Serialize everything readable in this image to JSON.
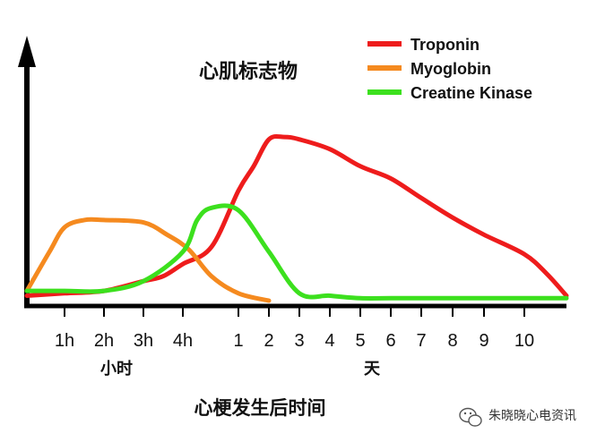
{
  "chart_data": {
    "type": "line",
    "title": "心肌标志物",
    "xlabel": "心梗发生后时间",
    "x_ticks_hours": [
      "1h",
      "2h",
      "3h",
      "4h"
    ],
    "x_unit_hours": "小时",
    "x_ticks_days": [
      "1",
      "2",
      "3",
      "4",
      "5",
      "6",
      "7",
      "8",
      "9",
      "10"
    ],
    "x_unit_days": "天",
    "x_positions": [
      -1,
      0,
      1,
      2,
      3,
      4,
      5,
      6,
      7,
      8,
      9,
      10,
      11,
      12,
      13,
      14,
      15,
      16,
      17
    ],
    "x_note": "ordinal scale: 0-3 = 1h-4h, 5-14 = day 1-10",
    "ylim": [
      0,
      100
    ],
    "legend_position": "top-right",
    "series": [
      {
        "name": "Troponin",
        "color": "#ee1c1c",
        "x": [
          -1,
          0,
          1,
          2,
          2.5,
          3,
          4,
          5,
          5.5,
          6,
          6.5,
          7,
          8,
          9,
          10,
          11,
          12,
          13,
          14,
          15,
          16
        ],
        "y": [
          2,
          3,
          4,
          8,
          10,
          15,
          22,
          45,
          55,
          66,
          67,
          66,
          62,
          55,
          50,
          42,
          34,
          27,
          19,
          11,
          2
        ]
      },
      {
        "name": "Myoglobin",
        "color": "#f58a1f",
        "x": [
          -1,
          -0.4,
          0,
          0.5,
          1,
          2,
          2.6,
          3.2,
          4,
          5,
          6
        ],
        "y": [
          4,
          20,
          30,
          33,
          33,
          32,
          27,
          21,
          10,
          3,
          0
        ]
      },
      {
        "name": "Creatine Kinase",
        "color": "#3ce01e",
        "x": [
          -1,
          0,
          1,
          2,
          3,
          3.5,
          4,
          5,
          6,
          7,
          8,
          9,
          10,
          11,
          12,
          13,
          14,
          15,
          16
        ],
        "y": [
          4,
          4,
          4,
          8,
          20,
          33,
          38,
          37,
          20,
          3,
          2,
          1,
          1,
          1,
          1,
          1,
          1,
          1,
          1
        ]
      }
    ]
  },
  "watermark": {
    "text": "朱晓晓心电资讯",
    "icon": "wechat-icon"
  }
}
